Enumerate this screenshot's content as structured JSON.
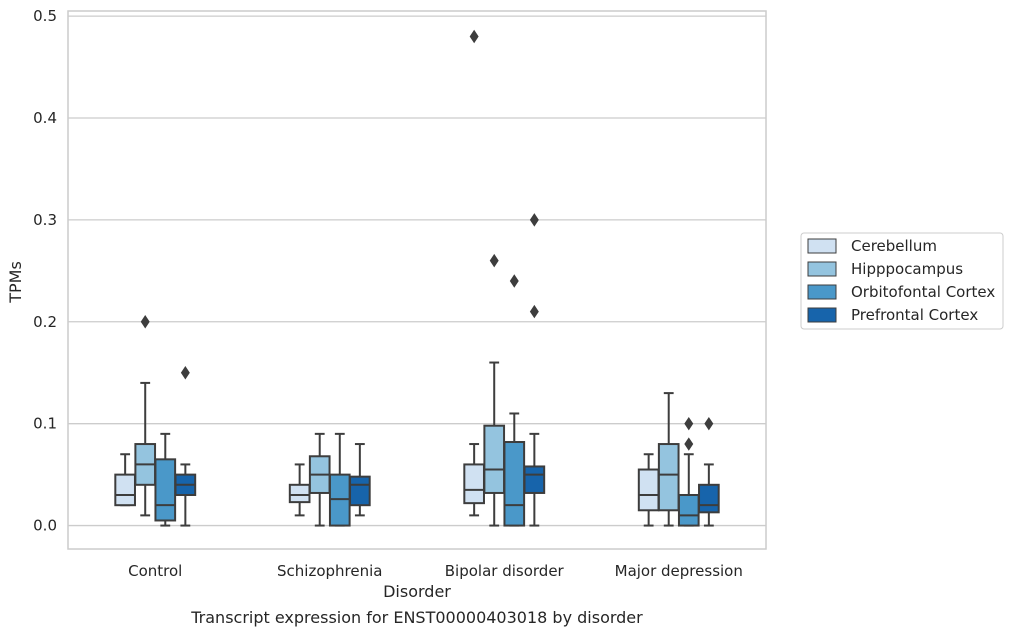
{
  "chart_data": {
    "type": "boxplot",
    "title": "",
    "caption": "Transcript expression for ENST00000403018 by disorder",
    "xlabel": "Disorder",
    "ylabel": "TPMs",
    "ylim": [
      -0.023,
      0.505
    ],
    "yticks": [
      "0.0",
      "0.1",
      "0.2",
      "0.3",
      "0.4",
      "0.5"
    ],
    "ytick_values": [
      0.0,
      0.1,
      0.2,
      0.3,
      0.4,
      0.5
    ],
    "categories": [
      "Control",
      "Schizophrenia",
      "Bipolar disorder",
      "Major depression"
    ],
    "grid": "horizontal",
    "legend_position": "right-outside",
    "series": [
      {
        "name": "Cerebellum",
        "color": "#d0e1f2",
        "boxes": [
          {
            "whislo": 0.02,
            "q1": 0.02,
            "med": 0.03,
            "q3": 0.05,
            "whishi": 0.07,
            "fliers": []
          },
          {
            "whislo": 0.01,
            "q1": 0.023,
            "med": 0.03,
            "q3": 0.04,
            "whishi": 0.06,
            "fliers": []
          },
          {
            "whislo": 0.01,
            "q1": 0.022,
            "med": 0.035,
            "q3": 0.06,
            "whishi": 0.08,
            "fliers": [
              0.48
            ]
          },
          {
            "whislo": 0.0,
            "q1": 0.015,
            "med": 0.03,
            "q3": 0.055,
            "whishi": 0.07,
            "fliers": []
          }
        ]
      },
      {
        "name": "Hipppocampus",
        "color": "#94c4df",
        "boxes": [
          {
            "whislo": 0.01,
            "q1": 0.04,
            "med": 0.06,
            "q3": 0.08,
            "whishi": 0.14,
            "fliers": [
              0.2
            ]
          },
          {
            "whislo": 0.0,
            "q1": 0.032,
            "med": 0.05,
            "q3": 0.068,
            "whishi": 0.09,
            "fliers": []
          },
          {
            "whislo": 0.0,
            "q1": 0.032,
            "med": 0.055,
            "q3": 0.098,
            "whishi": 0.16,
            "fliers": [
              0.26
            ]
          },
          {
            "whislo": 0.0,
            "q1": 0.015,
            "med": 0.05,
            "q3": 0.08,
            "whishi": 0.13,
            "fliers": []
          }
        ]
      },
      {
        "name": "Orbitofontal Cortex",
        "color": "#4a98c9",
        "boxes": [
          {
            "whislo": 0.0,
            "q1": 0.005,
            "med": 0.02,
            "q3": 0.065,
            "whishi": 0.09,
            "fliers": []
          },
          {
            "whislo": 0.0,
            "q1": 0.0,
            "med": 0.026,
            "q3": 0.05,
            "whishi": 0.09,
            "fliers": []
          },
          {
            "whislo": 0.0,
            "q1": 0.0,
            "med": 0.02,
            "q3": 0.082,
            "whishi": 0.11,
            "fliers": [
              0.24
            ]
          },
          {
            "whislo": 0.0,
            "q1": 0.0,
            "med": 0.01,
            "q3": 0.03,
            "whishi": 0.07,
            "fliers": [
              0.08,
              0.1
            ]
          }
        ]
      },
      {
        "name": "Prefrontal Cortex",
        "color": "#1764ab",
        "boxes": [
          {
            "whislo": 0.0,
            "q1": 0.03,
            "med": 0.04,
            "q3": 0.05,
            "whishi": 0.06,
            "fliers": [
              0.15
            ]
          },
          {
            "whislo": 0.01,
            "q1": 0.02,
            "med": 0.04,
            "q3": 0.048,
            "whishi": 0.08,
            "fliers": []
          },
          {
            "whislo": 0.0,
            "q1": 0.032,
            "med": 0.05,
            "q3": 0.058,
            "whishi": 0.09,
            "fliers": [
              0.21,
              0.3
            ]
          },
          {
            "whislo": 0.0,
            "q1": 0.013,
            "med": 0.02,
            "q3": 0.04,
            "whishi": 0.06,
            "fliers": [
              0.1
            ]
          }
        ]
      }
    ]
  }
}
